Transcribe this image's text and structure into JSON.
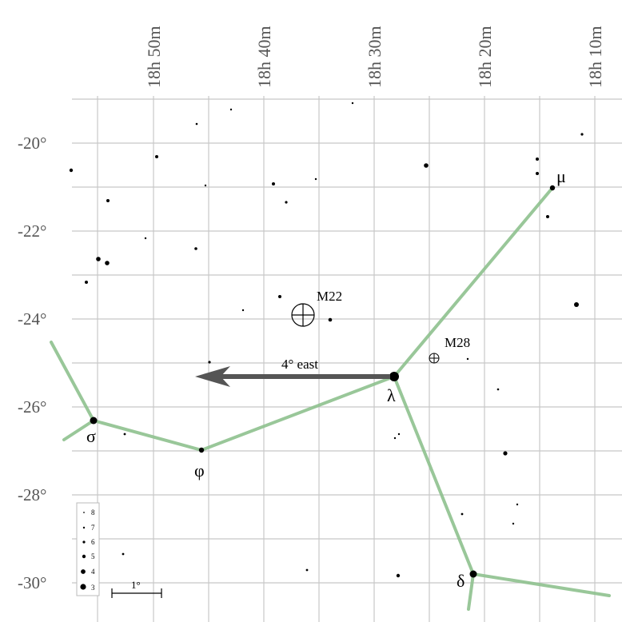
{
  "ra_labels": [
    "18h 50m",
    "18h 40m",
    "18h 30m",
    "18h 20m",
    "18h 10m"
  ],
  "dec_labels": [
    "-20°",
    "-22°",
    "-24°",
    "-26°",
    "-28°",
    "-30°"
  ],
  "stars": [
    {
      "name": "μ",
      "kind": "greek"
    },
    {
      "name": "λ",
      "kind": "greek"
    },
    {
      "name": "σ",
      "kind": "greek"
    },
    {
      "name": "φ",
      "kind": "greek"
    },
    {
      "name": "δ",
      "kind": "greek"
    }
  ],
  "objects": [
    {
      "name": "M22",
      "icon": "globular-cluster-icon"
    },
    {
      "name": "M28",
      "icon": "globular-cluster-icon"
    }
  ],
  "arrow": {
    "label": "4° east"
  },
  "scale_bar": {
    "label": "1°"
  },
  "legend": {
    "magnitudes": [
      "8",
      "7",
      "6",
      "5",
      "4",
      "3"
    ]
  },
  "colors": {
    "constellation": "#8ec18e",
    "grid": "#c8c8c8",
    "arrow": "#555555"
  }
}
